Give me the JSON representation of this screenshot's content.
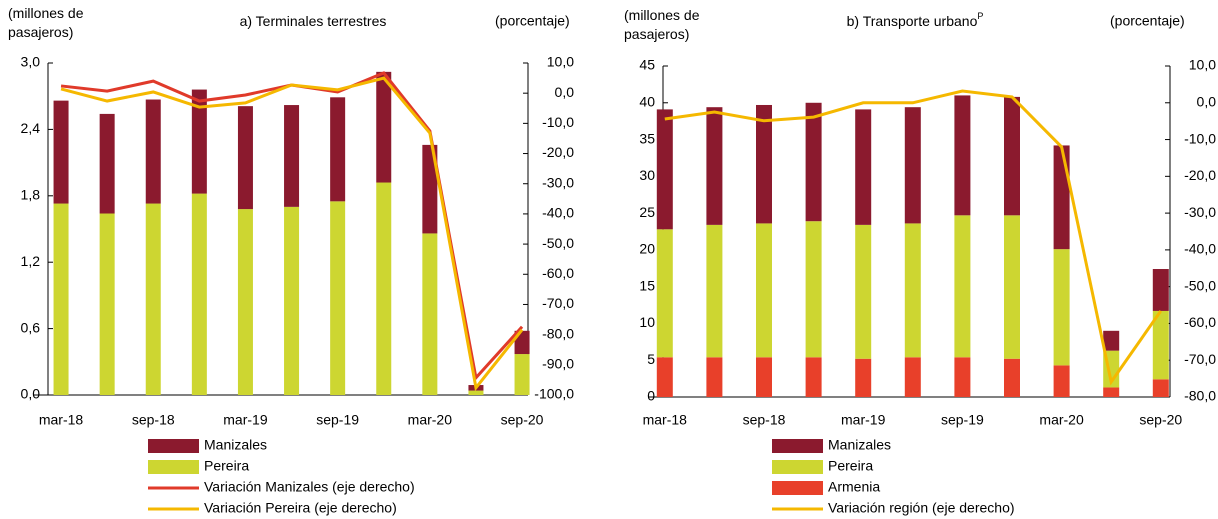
{
  "chart_data": [
    {
      "type": "bar",
      "title": "a) Terminales terrestres",
      "y_label": "(millones de pasajeros)",
      "y2_label": "(porcentaje)",
      "categories": [
        "mar-18",
        null,
        "sep-18",
        null,
        "mar-19",
        null,
        "sep-19",
        null,
        "mar-20",
        null,
        "sep-20"
      ],
      "ylim": [
        0,
        3.0
      ],
      "yticks": [
        {
          "value": 0,
          "label": "0,0"
        },
        {
          "value": 0.6,
          "label": "0,6"
        },
        {
          "value": 1.2,
          "label": "1,2"
        },
        {
          "value": 1.8,
          "label": "1,8"
        },
        {
          "value": 2.4,
          "label": "2,4"
        },
        {
          "value": 3.0,
          "label": "3,0"
        }
      ],
      "y2lim": [
        -100,
        10
      ],
      "y2ticks": [
        {
          "value": 10,
          "label": "10,0"
        },
        {
          "value": 0,
          "label": "0,0"
        },
        {
          "value": -10,
          "label": "-10,0"
        },
        {
          "value": -20,
          "label": "-20,0"
        },
        {
          "value": -30,
          "label": "-30,0"
        },
        {
          "value": -40,
          "label": "-40,0"
        },
        {
          "value": -50,
          "label": "-50,0"
        },
        {
          "value": -60,
          "label": "-60,0"
        },
        {
          "value": -70,
          "label": "-70,0"
        },
        {
          "value": -80,
          "label": "-80,0"
        },
        {
          "value": -90,
          "label": "-90,0"
        },
        {
          "value": -100,
          "label": "-100,0"
        }
      ],
      "series": [
        {
          "name": "Manizales",
          "type": "bar",
          "color": "#8b1a2e",
          "values": [
            0.93,
            0.9,
            0.94,
            0.94,
            0.93,
            0.92,
            0.94,
            1.0,
            0.8,
            0.05,
            0.21
          ]
        },
        {
          "name": "Pereira",
          "type": "bar",
          "color": "#cdd631",
          "values": [
            1.73,
            1.64,
            1.73,
            1.82,
            1.68,
            1.7,
            1.75,
            1.92,
            1.46,
            0.04,
            0.37
          ]
        },
        {
          "name": "Variación Manizales (eje derecho)",
          "type": "line",
          "axis": "y2",
          "color": "#e03a2a",
          "values": [
            2.4,
            0.7,
            4.0,
            -2.6,
            -0.6,
            2.7,
            0.4,
            6.7,
            -12.5,
            -94.3,
            -77.4
          ]
        },
        {
          "name": "Variación Pereira (eje derecho)",
          "type": "line",
          "axis": "y2",
          "color": "#f5b800",
          "values": [
            1.4,
            -2.6,
            0.4,
            -4.6,
            -3.2,
            2.7,
            1.1,
            5.0,
            -13.2,
            -97.6,
            -78.4
          ]
        }
      ]
    },
    {
      "type": "bar",
      "title": "b) Transporte urbano",
      "title_superscript": "P",
      "y_label": "(millones de pasajeros)",
      "y2_label": "(porcentaje)",
      "categories": [
        "mar-18",
        null,
        "sep-18",
        null,
        "mar-19",
        null,
        "sep-19",
        null,
        "mar-20",
        null,
        "sep-20"
      ],
      "ylim": [
        0,
        45
      ],
      "yticks": [
        0,
        5,
        10,
        15,
        20,
        25,
        30,
        35,
        40,
        45
      ],
      "y2lim": [
        -80,
        10
      ],
      "y2ticks": [
        {
          "value": 10,
          "label": "10,0"
        },
        {
          "value": 0,
          "label": "0,0"
        },
        {
          "value": -10,
          "label": "-10,0"
        },
        {
          "value": -20,
          "label": "-20,0"
        },
        {
          "value": -30,
          "label": "-30,0"
        },
        {
          "value": -40,
          "label": "-40,0"
        },
        {
          "value": -50,
          "label": "-50,0"
        },
        {
          "value": -60,
          "label": "-60,0"
        },
        {
          "value": -70,
          "label": "-70,0"
        },
        {
          "value": -80,
          "label": "-80,0"
        }
      ],
      "series": [
        {
          "name": "Manizales",
          "type": "bar",
          "color": "#8b1a2e",
          "values": [
            16.3,
            16.0,
            16.1,
            16.1,
            15.7,
            15.8,
            16.3,
            16.1,
            14.1,
            2.7,
            5.7
          ]
        },
        {
          "name": "Pereira",
          "type": "bar",
          "color": "#cdd631",
          "values": [
            17.4,
            18.0,
            18.2,
            18.5,
            18.2,
            18.2,
            19.3,
            19.5,
            15.8,
            5.0,
            9.3
          ]
        },
        {
          "name": "Armenia",
          "type": "bar",
          "color": "#e8402a",
          "values": [
            5.4,
            5.4,
            5.4,
            5.4,
            5.2,
            5.4,
            5.4,
            5.2,
            4.3,
            1.3,
            2.4
          ]
        },
        {
          "name": "Variación región (eje derecho)",
          "type": "line",
          "axis": "y2",
          "color": "#f5b800",
          "values": [
            -4.4,
            -2.5,
            -4.9,
            -3.9,
            0.0,
            0.0,
            3.2,
            1.6,
            -12.0,
            -75.9,
            -56.6
          ]
        }
      ]
    }
  ]
}
